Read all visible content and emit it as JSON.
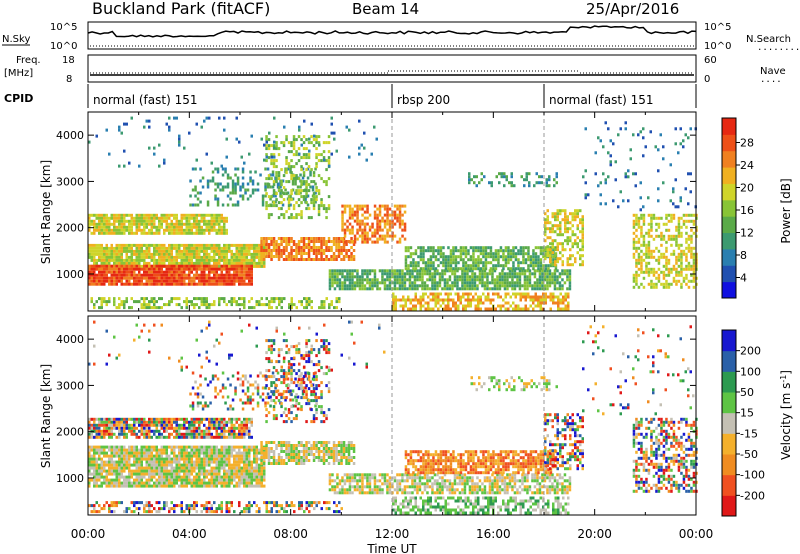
{
  "header": {
    "station": "Buckland Park (fitACF)",
    "beam": "Beam 14",
    "date": "25/Apr/2016"
  },
  "labels": {
    "nsky": "N.Sky",
    "freq_line1": "Freq.",
    "freq_line2": "[MHz]",
    "cpid": "CPID",
    "nsearch": "N.Search",
    "nave": "Nave",
    "noise_hi": "10^5",
    "noise_lo": "10^0",
    "freq_hi": "18",
    "freq_lo": "8",
    "nave_hi": "60",
    "nave_lo": "0",
    "dotted_sample": "........"
  },
  "cpid_segments": [
    {
      "label": "normal (fast) 151",
      "start_hour": 0
    },
    {
      "label": "rbsp 200",
      "start_hour": 12
    },
    {
      "label": "normal (fast) 151",
      "start_hour": 18
    }
  ],
  "chart_data": [
    {
      "type": "heatmap",
      "name": "power",
      "ylabel": "Slant Range [km]",
      "ylim": [
        200,
        4500
      ],
      "yticks": [
        "1000",
        "2000",
        "3000",
        "4000"
      ],
      "xlim_hours": [
        0,
        24
      ],
      "colorbar": {
        "label": "Power [dB]",
        "ticks": [
          "4",
          "8",
          "12",
          "16",
          "20",
          "24",
          "28"
        ],
        "colors": [
          "#1010e0",
          "#2050b0",
          "#2a7fb0",
          "#3c9a70",
          "#5aaa48",
          "#88c436",
          "#cfd42a",
          "#f0b020",
          "#f08020",
          "#ee5018",
          "#e62812"
        ]
      },
      "bands": [
        {
          "t0": 0.0,
          "t1": 5.5,
          "r0": 1850,
          "r1": 2300,
          "level": 6,
          "density": 0.85
        },
        {
          "t0": 0.0,
          "t1": 7.0,
          "r0": 1150,
          "r1": 1650,
          "level": 6,
          "density": 0.9
        },
        {
          "t0": 0.0,
          "t1": 6.5,
          "r0": 800,
          "r1": 1200,
          "level": 9,
          "density": 0.95
        },
        {
          "t0": 0.0,
          "t1": 10.0,
          "r0": 250,
          "r1": 500,
          "level": 5,
          "density": 0.5
        },
        {
          "t0": 4.0,
          "t1": 9.0,
          "r0": 2500,
          "r1": 3300,
          "level": 3,
          "density": 0.25
        },
        {
          "t0": 6.8,
          "t1": 10.5,
          "r0": 1300,
          "r1": 1800,
          "level": 8,
          "density": 0.8
        },
        {
          "t0": 7.0,
          "t1": 9.5,
          "r0": 2200,
          "r1": 4000,
          "level": 5,
          "density": 0.35
        },
        {
          "t0": 10.0,
          "t1": 12.5,
          "r0": 1700,
          "r1": 2500,
          "level": 8,
          "density": 0.6
        },
        {
          "t0": 9.5,
          "t1": 19.0,
          "r0": 700,
          "r1": 1100,
          "level": 4,
          "density": 0.8
        },
        {
          "t0": 12.5,
          "t1": 18.5,
          "r0": 1100,
          "r1": 1600,
          "level": 4,
          "density": 0.75
        },
        {
          "t0": 12.0,
          "t1": 19.0,
          "r0": 250,
          "r1": 600,
          "level": 7,
          "density": 0.6
        },
        {
          "t0": 15.0,
          "t1": 18.5,
          "r0": 2900,
          "r1": 3200,
          "level": 3,
          "density": 0.35
        },
        {
          "t0": 18.0,
          "t1": 19.5,
          "r0": 1200,
          "r1": 2400,
          "level": 6,
          "density": 0.5
        },
        {
          "t0": 21.5,
          "t1": 24.0,
          "r0": 700,
          "r1": 2300,
          "level": 6,
          "density": 0.5
        },
        {
          "t0": 19.5,
          "t1": 24.0,
          "r0": 2400,
          "r1": 4300,
          "level": 2,
          "density": 0.06
        },
        {
          "t0": 0.0,
          "t1": 12.0,
          "r0": 3300,
          "r1": 4400,
          "level": 2,
          "density": 0.04
        }
      ]
    },
    {
      "type": "heatmap",
      "name": "velocity",
      "ylabel": "Slant Range [km]",
      "ylim": [
        200,
        4500
      ],
      "yticks": [
        "1000",
        "2000",
        "3000",
        "4000"
      ],
      "xticks": [
        "00:00",
        "04:00",
        "08:00",
        "12:00",
        "16:00",
        "20:00",
        "00:00"
      ],
      "xlabel": "Time UT",
      "xlim_hours": [
        0,
        24
      ],
      "colorbar": {
        "label": "Velocity [m s",
        "label_sup": "-1",
        "label_end": "]",
        "ticks": [
          "-200",
          "-100",
          "-50",
          "-15",
          "15",
          "50",
          "100",
          "200"
        ],
        "colors": [
          "#e01818",
          "#f05020",
          "#f08c20",
          "#f4b02c",
          "#c4c0b4",
          "#5ec444",
          "#2c9a50",
          "#2a60a8",
          "#1818d0"
        ]
      },
      "bands": [
        {
          "t0": 0.0,
          "t1": 6.5,
          "r0": 1850,
          "r1": 2300,
          "level": -1,
          "density": 0.85
        },
        {
          "t0": 0.0,
          "t1": 7.0,
          "r0": 800,
          "r1": 1700,
          "level": 4,
          "density": 0.9
        },
        {
          "t0": 0.0,
          "t1": 10.0,
          "r0": 250,
          "r1": 500,
          "level": -1,
          "density": 0.5
        },
        {
          "t0": 4.0,
          "t1": 9.0,
          "r0": 2500,
          "r1": 3300,
          "level": -1,
          "density": 0.25
        },
        {
          "t0": 6.8,
          "t1": 10.5,
          "r0": 1300,
          "r1": 1800,
          "level": 4,
          "density": 0.75
        },
        {
          "t0": 7.0,
          "t1": 9.5,
          "r0": 2200,
          "r1": 4000,
          "level": -1,
          "density": 0.35
        },
        {
          "t0": 9.5,
          "t1": 19.0,
          "r0": 700,
          "r1": 1100,
          "level": 4,
          "density": 0.7
        },
        {
          "t0": 12.5,
          "t1": 18.5,
          "r0": 1100,
          "r1": 1600,
          "level": 2,
          "density": 0.75
        },
        {
          "t0": 12.0,
          "t1": 19.0,
          "r0": 250,
          "r1": 600,
          "level": 5,
          "density": 0.55
        },
        {
          "t0": 15.0,
          "t1": 18.5,
          "r0": 2900,
          "r1": 3200,
          "level": 4,
          "density": 0.35
        },
        {
          "t0": 18.0,
          "t1": 19.5,
          "r0": 1200,
          "r1": 2400,
          "level": -1,
          "density": 0.5
        },
        {
          "t0": 21.5,
          "t1": 24.0,
          "r0": 700,
          "r1": 2300,
          "level": -1,
          "density": 0.5
        },
        {
          "t0": 19.5,
          "t1": 24.0,
          "r0": 2400,
          "r1": 4300,
          "level": -1,
          "density": 0.06
        },
        {
          "t0": 0.0,
          "t1": 12.0,
          "r0": 3300,
          "r1": 4400,
          "level": -1,
          "density": 0.04
        }
      ]
    }
  ]
}
